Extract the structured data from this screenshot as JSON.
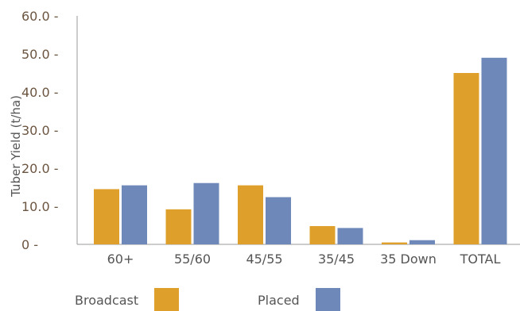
{
  "chart_data": {
    "type": "bar",
    "title": "",
    "xlabel": "",
    "ylabel": "Tuber Yield (t/ha)",
    "ylim": [
      0,
      60
    ],
    "y_ticks": [
      "0 -",
      "10.0 -",
      "20.0 -",
      "30.0 -",
      "40.0 -",
      "50.0 -",
      "60.0 -"
    ],
    "categories": [
      "60+",
      "55/60",
      "45/55",
      "35/45",
      "35 Down",
      "TOTAL"
    ],
    "series": [
      {
        "name": "Broadcast",
        "color": "#dfa02b",
        "values": [
          14.5,
          9.2,
          15.5,
          4.8,
          0.5,
          45.0
        ]
      },
      {
        "name": "Placed",
        "color": "#6e89b9",
        "values": [
          15.5,
          16.1,
          12.4,
          4.3,
          1.1,
          49.0
        ]
      }
    ],
    "grid": false,
    "legend_position": "bottom-left"
  }
}
